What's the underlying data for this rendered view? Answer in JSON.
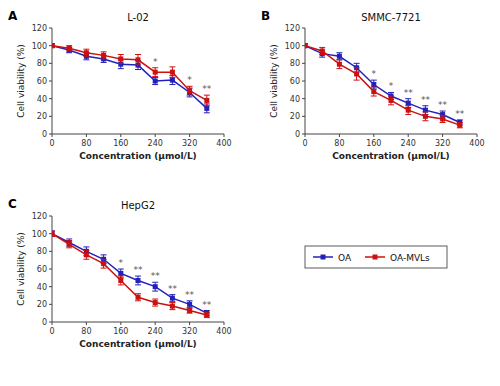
{
  "chart_data": [
    {
      "type": "line",
      "label": "A",
      "title": "L-02",
      "xlabel": "Concentration (μmol/L)",
      "ylabel": "Cell viability (%)",
      "x": [
        0,
        40,
        80,
        120,
        160,
        200,
        240,
        280,
        320,
        360
      ],
      "series": [
        {
          "name": "OA",
          "color": "#2222bb",
          "marker": "square",
          "values": [
            100,
            95,
            88,
            85,
            79,
            78,
            60,
            61,
            47,
            29
          ],
          "errors": [
            2,
            3,
            4,
            4,
            5,
            5,
            4,
            5,
            5,
            5
          ]
        },
        {
          "name": "OA-MVLs",
          "color": "#cc1111",
          "marker": "square",
          "values": [
            100,
            97,
            92,
            89,
            85,
            84,
            70,
            70,
            49,
            38
          ],
          "errors": [
            2,
            3,
            4,
            4,
            5,
            6,
            5,
            6,
            5,
            6
          ]
        }
      ],
      "annotations": [
        {
          "x": 240,
          "text": "*"
        },
        {
          "x": 320,
          "text": "*"
        },
        {
          "x": 360,
          "text": "**"
        }
      ],
      "xlim": [
        0,
        400
      ],
      "ylim": [
        0,
        120
      ],
      "xticks": [
        0,
        80,
        160,
        240,
        320,
        400
      ],
      "yticks": [
        0,
        20,
        40,
        60,
        80,
        100,
        120
      ],
      "grid": false
    },
    {
      "type": "line",
      "label": "B",
      "title": "SMMC-7721",
      "xlabel": "Concentration (μmol/L)",
      "ylabel": "Cell viability (%)",
      "x": [
        0,
        40,
        80,
        120,
        160,
        200,
        240,
        280,
        320,
        360
      ],
      "series": [
        {
          "name": "OA",
          "color": "#2222bb",
          "marker": "square",
          "values": [
            100,
            91,
            88,
            75,
            56,
            43,
            35,
            27,
            22,
            13
          ],
          "errors": [
            2,
            4,
            4,
            5,
            5,
            4,
            5,
            5,
            4,
            3
          ]
        },
        {
          "name": "OA-MVLs",
          "color": "#cc1111",
          "marker": "square",
          "values": [
            100,
            94,
            79,
            68,
            48,
            38,
            27,
            20,
            17,
            10
          ],
          "errors": [
            2,
            4,
            5,
            7,
            5,
            5,
            5,
            5,
            4,
            3
          ]
        }
      ],
      "annotations": [
        {
          "x": 160,
          "text": "*"
        },
        {
          "x": 200,
          "text": "*"
        },
        {
          "x": 240,
          "text": "**"
        },
        {
          "x": 280,
          "text": "**"
        },
        {
          "x": 320,
          "text": "**"
        },
        {
          "x": 360,
          "text": "**"
        }
      ],
      "xlim": [
        0,
        400
      ],
      "ylim": [
        0,
        120
      ],
      "xticks": [
        0,
        80,
        160,
        240,
        320,
        400
      ],
      "yticks": [
        0,
        20,
        40,
        60,
        80,
        100,
        120
      ],
      "grid": false
    },
    {
      "type": "line",
      "label": "C",
      "title": "HepG2",
      "xlabel": "Concentration (μmol/L)",
      "ylabel": "Cell viability (%)",
      "x": [
        0,
        40,
        80,
        120,
        160,
        200,
        240,
        280,
        320,
        360
      ],
      "series": [
        {
          "name": "OA",
          "color": "#2222bb",
          "marker": "square",
          "values": [
            100,
            90,
            80,
            71,
            55,
            47,
            40,
            27,
            20,
            10
          ],
          "errors": [
            3,
            4,
            5,
            5,
            5,
            5,
            5,
            4,
            4,
            3
          ]
        },
        {
          "name": "OA-MVLs",
          "color": "#cc1111",
          "marker": "square",
          "values": [
            100,
            88,
            76,
            66,
            47,
            28,
            22,
            18,
            13,
            8
          ],
          "errors": [
            3,
            4,
            5,
            5,
            5,
            4,
            4,
            4,
            3,
            3
          ]
        }
      ],
      "annotations": [
        {
          "x": 160,
          "text": "*"
        },
        {
          "x": 200,
          "text": "**"
        },
        {
          "x": 240,
          "text": "**"
        },
        {
          "x": 280,
          "text": "**"
        },
        {
          "x": 320,
          "text": "**"
        },
        {
          "x": 360,
          "text": "**"
        }
      ],
      "xlim": [
        0,
        400
      ],
      "ylim": [
        0,
        120
      ],
      "xticks": [
        0,
        80,
        160,
        240,
        320,
        400
      ],
      "yticks": [
        0,
        20,
        40,
        60,
        80,
        100,
        120
      ],
      "grid": false,
      "legend": "outside"
    }
  ]
}
